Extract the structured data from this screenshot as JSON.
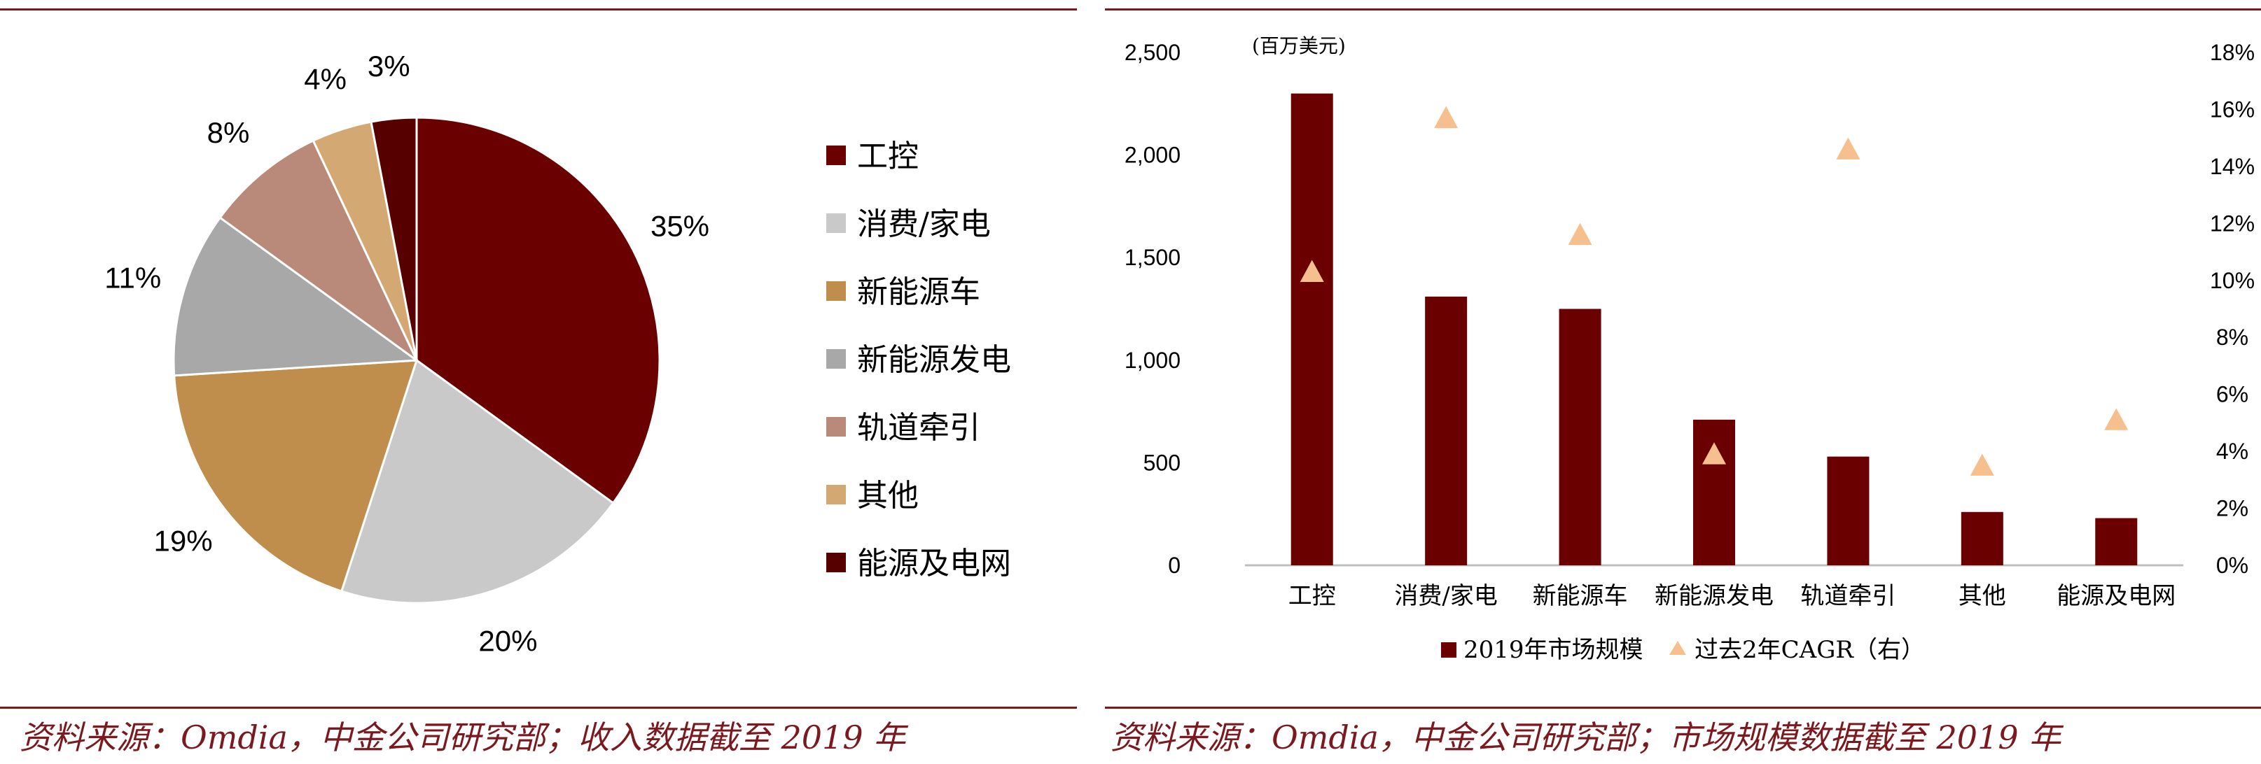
{
  "charts": {
    "pie": {
      "type": "pie",
      "categories": [
        "工控",
        "消费/家电",
        "新能源车",
        "新能源发电",
        "轨道牵引",
        "其他",
        "能源及电网"
      ],
      "values": [
        35,
        20,
        19,
        11,
        8,
        4,
        3
      ],
      "value_labels": [
        "35%",
        "20%",
        "19%",
        "11%",
        "8%",
        "4%",
        "3%"
      ],
      "colors": [
        "#6b0000",
        "#c9c9c9",
        "#c08e4c",
        "#a8a8a8",
        "#b98a7a",
        "#d4a873",
        "#560000"
      ],
      "legend_position": "right"
    },
    "bar": {
      "type": "bar",
      "unit_label": "(百万美元)",
      "categories": [
        "工控",
        "消费/家电",
        "新能源车",
        "新能源发电",
        "轨道牵引",
        "其他",
        "能源及电网"
      ],
      "series": [
        {
          "name": "2019年市场规模",
          "type": "bar",
          "axis": "left",
          "color": "#6b0000",
          "values": [
            2300,
            1310,
            1250,
            710,
            530,
            260,
            230
          ]
        },
        {
          "name": "过去2年CAGR（右）",
          "type": "scatter",
          "marker": "triangle",
          "axis": "right",
          "color": "#f6bf8e",
          "values": [
            10.3,
            15.7,
            11.6,
            3.9,
            14.6,
            3.5,
            5.1
          ]
        }
      ],
      "ylim": [
        0,
        2500
      ],
      "yticks": [
        0,
        500,
        1000,
        1500,
        2000,
        2500
      ],
      "ytick_labels": [
        "0",
        "500",
        "1,000",
        "1,500",
        "2,000",
        "2,500"
      ],
      "y2lim": [
        0,
        18
      ],
      "y2ticks": [
        0,
        2,
        4,
        6,
        8,
        10,
        12,
        14,
        16,
        18
      ],
      "y2tick_labels": [
        "0%",
        "2%",
        "4%",
        "6%",
        "8%",
        "10%",
        "12%",
        "14%",
        "16%",
        "18%"
      ],
      "legend_position": "bottom",
      "grid": false
    }
  },
  "sources": {
    "left": "资料来源：Omdia，中金公司研究部；收入数据截至 2019 年",
    "right": "资料来源：Omdia，中金公司研究部；市场规模数据截至 2019 年"
  }
}
